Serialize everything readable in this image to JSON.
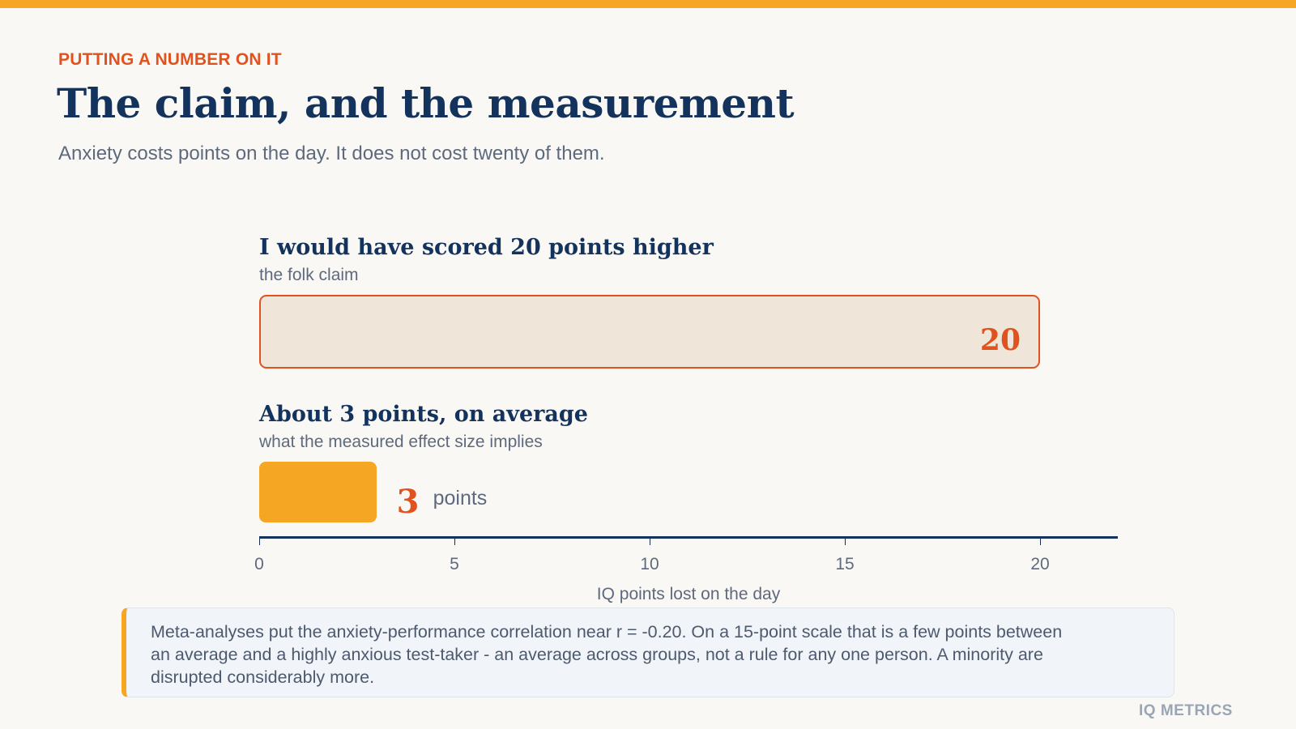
{
  "colors": {
    "accent_orange": "#e0531f",
    "accent_yellow": "#f5a623",
    "navy": "#13325c",
    "claim_fill": "#efe6d9",
    "muted_text": "#5d6a7d"
  },
  "header": {
    "eyebrow": "PUTTING A NUMBER ON IT",
    "title": "The claim, and the measurement",
    "subtitle": "Anxiety costs points on the day. It does not cost twenty of them."
  },
  "chart_data": {
    "type": "bar",
    "orientation": "horizontal",
    "categories": [
      "I would have scored 20 points higher",
      "About 3 points, on average"
    ],
    "category_subtitles": [
      "the folk claim",
      "what the measured effect size implies"
    ],
    "values": [
      20,
      3
    ],
    "value_labels": [
      "20",
      "3"
    ],
    "value_unit": "points",
    "xlabel": "IQ points lost on the day",
    "xlim": [
      0,
      22
    ],
    "xticks": [
      0,
      5,
      10,
      15,
      20
    ],
    "grid": false
  },
  "note": {
    "text": "Meta-analyses put the anxiety-performance correlation near r = -0.20. On a 15-point scale that is a few points between an average and a highly anxious test-taker - an average across groups, not a rule for any one person. A minority are disrupted considerably more."
  },
  "footer": {
    "brand": "IQ METRICS"
  }
}
